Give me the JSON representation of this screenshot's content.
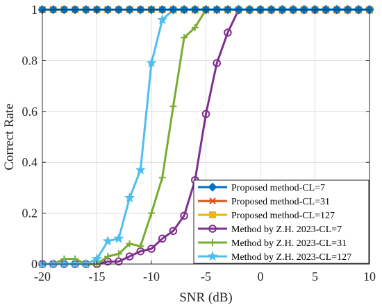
{
  "chart_data": {
    "type": "line",
    "title": "",
    "xlabel": "SNR (dB)",
    "ylabel": "Correct Rate",
    "xlim": [
      -20,
      10
    ],
    "ylim": [
      0,
      1
    ],
    "xticks": [
      -20,
      -15,
      -10,
      -5,
      0,
      5,
      10
    ],
    "yticks": [
      0,
      0.2,
      0.4,
      0.6,
      0.8,
      1
    ],
    "xtick_labels": [
      "-20",
      "-15",
      "-10",
      "-5",
      "0",
      "5",
      "10"
    ],
    "ytick_labels": [
      "0",
      "0.2",
      "0.4",
      "0.6",
      "0.8",
      "1"
    ],
    "grid": true,
    "legend_position": "bottom-right",
    "x": [
      -20,
      -19,
      -18,
      -17,
      -16,
      -15,
      -14,
      -13,
      -12,
      -11,
      -10,
      -9,
      -8,
      -7,
      -6,
      -5,
      -4,
      -3,
      -2,
      -1,
      0,
      1,
      2,
      3,
      4,
      5,
      6,
      7,
      8,
      9,
      10
    ],
    "series": [
      {
        "name": "Proposed method-CL=7",
        "color": "#0072BD",
        "marker": "diamond",
        "values": [
          1,
          1,
          1,
          1,
          1,
          1,
          1,
          1,
          1,
          1,
          1,
          1,
          1,
          1,
          1,
          1,
          1,
          1,
          1,
          1,
          1,
          1,
          1,
          1,
          1,
          1,
          1,
          1,
          1,
          1,
          1
        ]
      },
      {
        "name": "Proposed method-CL=31",
        "color": "#D95319",
        "marker": "x",
        "values": [
          1,
          1,
          1,
          1,
          1,
          1,
          1,
          1,
          1,
          1,
          1,
          1,
          1,
          1,
          1,
          1,
          1,
          1,
          1,
          1,
          1,
          1,
          1,
          1,
          1,
          1,
          1,
          1,
          1,
          1,
          1
        ]
      },
      {
        "name": "Proposed method-CL=127",
        "color": "#EDB120",
        "marker": "square",
        "values": [
          1,
          1,
          1,
          1,
          1,
          1,
          1,
          1,
          1,
          1,
          1,
          1,
          1,
          1,
          1,
          1,
          1,
          1,
          1,
          1,
          1,
          1,
          1,
          1,
          1,
          1,
          1,
          1,
          1,
          1,
          1
        ]
      },
      {
        "name": "Method by Z.H. 2023-CL=7",
        "color": "#7E2F8E",
        "marker": "circle",
        "values": [
          0,
          0,
          0,
          0,
          0,
          0,
          0.01,
          0.01,
          0.03,
          0.05,
          0.06,
          0.1,
          0.13,
          0.19,
          0.33,
          0.59,
          0.79,
          0.91,
          1,
          1,
          1,
          1,
          1,
          1,
          1,
          1,
          1,
          1,
          1,
          1,
          1
        ]
      },
      {
        "name": "Method by Z.H. 2023-CL=31",
        "color": "#77AC30",
        "marker": "plus",
        "values": [
          0,
          0,
          0.02,
          0.02,
          0,
          0,
          0.03,
          0.04,
          0.08,
          0.07,
          0.2,
          0.34,
          0.62,
          0.89,
          0.93,
          1,
          1,
          1,
          1,
          1,
          1,
          1,
          1,
          1,
          1,
          1,
          1,
          1,
          1,
          1,
          1
        ]
      },
      {
        "name": "Method by Z.H. 2023-CL=127",
        "color": "#4DBEEE",
        "marker": "star",
        "values": [
          0,
          0,
          0,
          0,
          0,
          0.02,
          0.09,
          0.1,
          0.26,
          0.37,
          0.79,
          0.96,
          1,
          1,
          1,
          1,
          1,
          1,
          1,
          1,
          1,
          1,
          1,
          1,
          1,
          1,
          1,
          1,
          1,
          1,
          1
        ]
      }
    ]
  }
}
